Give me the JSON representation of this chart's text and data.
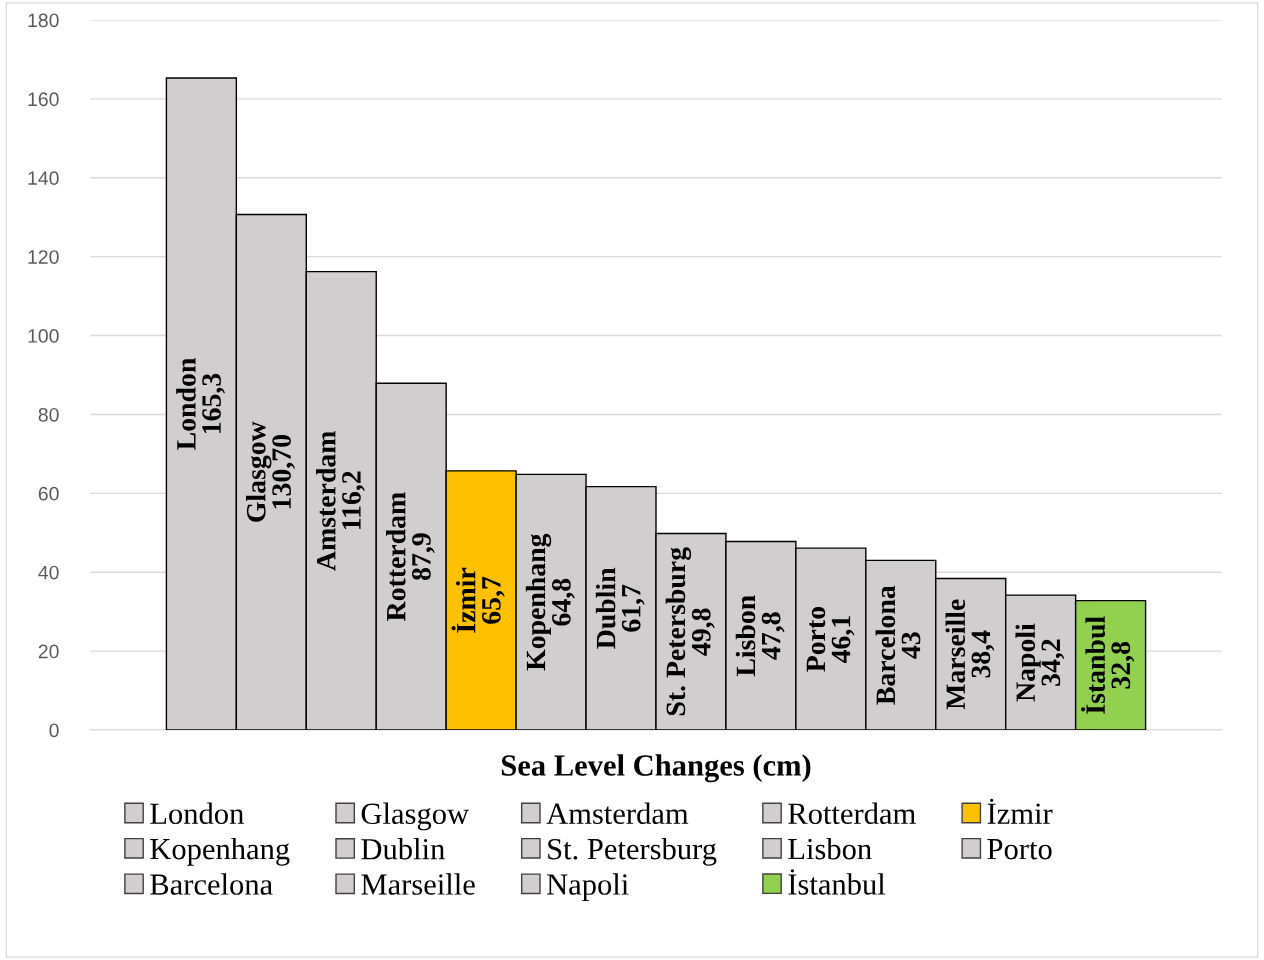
{
  "chart_data": {
    "type": "bar",
    "xlabel": "Sea Level Changes (cm)",
    "categories": [
      null
    ],
    "ylim": [
      0,
      180
    ],
    "yticks": [
      0,
      20,
      40,
      60,
      80,
      100,
      120,
      140,
      160,
      180
    ],
    "grid": "y",
    "legend": "bottom",
    "series": [
      {
        "name": "London",
        "color": "#d0cece",
        "values": [
          165.3
        ],
        "value_labels": [
          "165,3"
        ]
      },
      {
        "name": "Glasgow",
        "color": "#d0cece",
        "values": [
          130.7
        ],
        "value_labels": [
          "130,70"
        ]
      },
      {
        "name": "Amsterdam",
        "color": "#d0cece",
        "values": [
          116.2
        ],
        "value_labels": [
          "116,2"
        ]
      },
      {
        "name": "Rotterdam",
        "color": "#d0cece",
        "values": [
          87.9
        ],
        "value_labels": [
          "87,9"
        ]
      },
      {
        "name": "İzmir",
        "color": "#ffc000",
        "values": [
          65.7
        ],
        "value_labels": [
          "65,7"
        ]
      },
      {
        "name": "Kopenhang",
        "color": "#d0cece",
        "values": [
          64.8
        ],
        "value_labels": [
          "64,8"
        ]
      },
      {
        "name": "Dublin",
        "color": "#d0cece",
        "values": [
          61.7
        ],
        "value_labels": [
          "61,7"
        ]
      },
      {
        "name": "St. Petersburg",
        "color": "#d0cece",
        "values": [
          49.8
        ],
        "value_labels": [
          "49,8"
        ]
      },
      {
        "name": "Lisbon",
        "color": "#d0cece",
        "values": [
          47.8
        ],
        "value_labels": [
          "47,8"
        ]
      },
      {
        "name": "Porto",
        "color": "#d0cece",
        "values": [
          46.1
        ],
        "value_labels": [
          "46,1"
        ]
      },
      {
        "name": "Barcelona",
        "color": "#d0cece",
        "values": [
          43
        ],
        "value_labels": [
          "43"
        ]
      },
      {
        "name": "Marseille",
        "color": "#d0cece",
        "values": [
          38.4
        ],
        "value_labels": [
          "38,4"
        ]
      },
      {
        "name": "Napoli",
        "color": "#d0cece",
        "values": [
          34.2
        ],
        "value_labels": [
          "34,2"
        ]
      },
      {
        "name": "İstanbul",
        "color": "#92d050",
        "values": [
          32.8
        ],
        "value_labels": [
          "32,8"
        ]
      }
    ]
  }
}
